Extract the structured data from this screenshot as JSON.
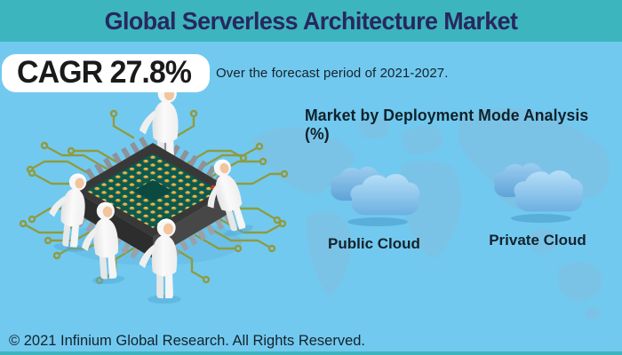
{
  "header": {
    "title": "Global Serverless Architecture Market"
  },
  "cagr": {
    "label": "CAGR",
    "value": "27.8%",
    "combined": "CAGR 27.8%",
    "note": "Over the forecast period of 2021-2027."
  },
  "deployment": {
    "heading": "Market by Deployment Mode Analysis (%)",
    "modes": [
      {
        "label": "Public Cloud",
        "icon": "cloud-icon"
      },
      {
        "label": "Private Cloud",
        "icon": "cloud-icon"
      }
    ]
  },
  "illustration": {
    "name": "engineers-assembling-cpu-chip",
    "description": "Five workers in white cleanroom suits assemble an isometric microchip with golden pin grid and olive circuit traces",
    "background": "world-map-watermark"
  },
  "footer": {
    "copyright": "© 2021 Infinium Global Research. All Rights Reserved."
  },
  "colors": {
    "header_bar": "#3db5be",
    "background": "#72c9ef",
    "map_watermark": "#7cc2e4",
    "title_text": "#27285f",
    "badge_background": "#ffffff",
    "badge_text": "#1a1a1a",
    "body_text": "#14232c",
    "cloud_blue": "#7fbde9",
    "chip_top": "#0c5a4f",
    "chip_pins_gold": "#e3ab3c",
    "chip_body": "#383838",
    "circuit_trace": "#8f9b40",
    "footer_strip": "#3db5be"
  }
}
